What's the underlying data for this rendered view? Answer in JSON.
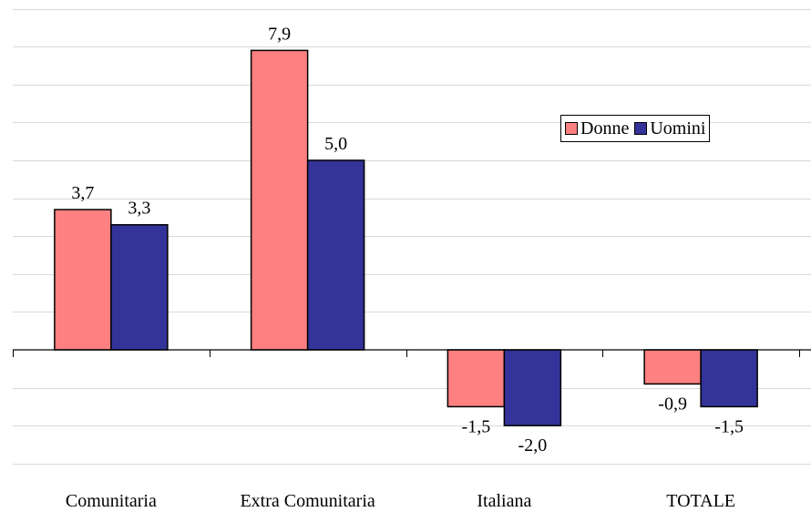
{
  "chart_data": {
    "type": "bar",
    "categories": [
      "Comunitaria",
      "Extra Comunitaria",
      "Italiana",
      "TOTALE"
    ],
    "series": [
      {
        "name": "Donne",
        "values": [
          3.7,
          7.9,
          -1.5,
          -0.9
        ],
        "labels": [
          "3,7",
          "7,9",
          "-1,5",
          "-0,9"
        ],
        "color": "#ff8080"
      },
      {
        "name": "Uomini",
        "values": [
          3.3,
          5.0,
          -2.0,
          -1.5
        ],
        "labels": [
          "3,3",
          "5,0",
          "-2,0",
          "-1,5"
        ],
        "color": "#333399"
      }
    ],
    "title": "",
    "xlabel": "",
    "ylabel": "",
    "ylim": [
      -3,
      9
    ],
    "grid": true,
    "legend": "top-right"
  }
}
